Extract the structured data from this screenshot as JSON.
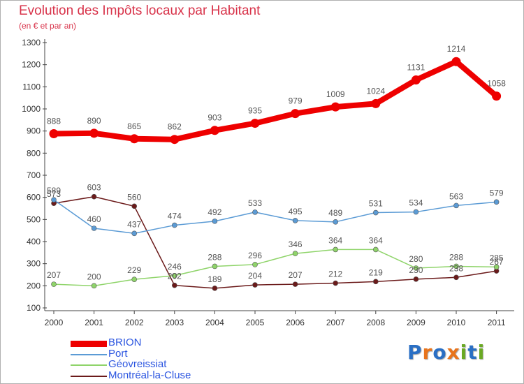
{
  "title": "Evolution des Impôts locaux par Habitant",
  "subtitle": "(en € et par an)",
  "logo": {
    "letters": [
      {
        "ch": "P",
        "color": "#2a6fc4"
      },
      {
        "ch": "r",
        "color": "#e8741c"
      },
      {
        "ch": "o",
        "color": "#2a6fc4"
      },
      {
        "ch": "x",
        "color": "#e8741c"
      },
      {
        "ch": "i",
        "color": "#6aa923"
      },
      {
        "ch": "t",
        "color": "#2a6fc4"
      },
      {
        "ch": "i",
        "color": "#6aa923"
      }
    ]
  },
  "colors": {
    "accent": "#d8334a",
    "legend_text": "#2b55e0",
    "axis_text": "#333333",
    "point_label": "#555555"
  },
  "chart_data": {
    "type": "line",
    "title": "Evolution des Impôts locaux par Habitant",
    "subtitle": "(en € et par an)",
    "x": [
      "2000",
      "2001",
      "2002",
      "2003",
      "2004",
      "2005",
      "2006",
      "2007",
      "2008",
      "2009",
      "2010",
      "2011"
    ],
    "ylim": [
      100,
      1300
    ],
    "yticks": [
      100,
      200,
      300,
      400,
      500,
      600,
      700,
      800,
      900,
      1000,
      1100,
      1200,
      1300
    ],
    "grid": false,
    "legend_position": "bottom-left",
    "series": [
      {
        "name": "BRION",
        "color": "#ee0000",
        "values": [
          888,
          890,
          865,
          862,
          903,
          935,
          979,
          1009,
          1024,
          1131,
          1214,
          1058
        ],
        "labels": [
          "888",
          "890",
          "865",
          "862",
          "903",
          "935",
          "979",
          "1009",
          "1024",
          "1131",
          "1214",
          "1058"
        ]
      },
      {
        "name": "Port",
        "color": "#5b9bd5",
        "values": [
          589,
          460,
          437,
          474,
          492,
          533,
          495,
          489,
          531,
          534,
          563,
          579
        ],
        "labels": [
          "589",
          "460",
          "437",
          "474",
          "492",
          "533",
          "495",
          "489",
          "531",
          "534",
          "563",
          "579"
        ]
      },
      {
        "name": "Géovreissiat",
        "color": "#8fd46a",
        "values": [
          207,
          200,
          229,
          246,
          288,
          296,
          346,
          364,
          364,
          280,
          288,
          285
        ],
        "labels": [
          "207",
          "200",
          "229",
          "246",
          "288",
          "296",
          "346",
          "364",
          "364",
          "280",
          "288",
          "285"
        ]
      },
      {
        "name": "Montréal-la-Cluse",
        "color": "#6b1a1a",
        "values": [
          573,
          603,
          560,
          202,
          189,
          204,
          207,
          212,
          219,
          230,
          238,
          267
        ],
        "labels": [
          "573",
          "603",
          "560",
          "202",
          "189",
          "204",
          "207",
          "212",
          "219",
          "230",
          "238",
          "267"
        ]
      }
    ]
  }
}
